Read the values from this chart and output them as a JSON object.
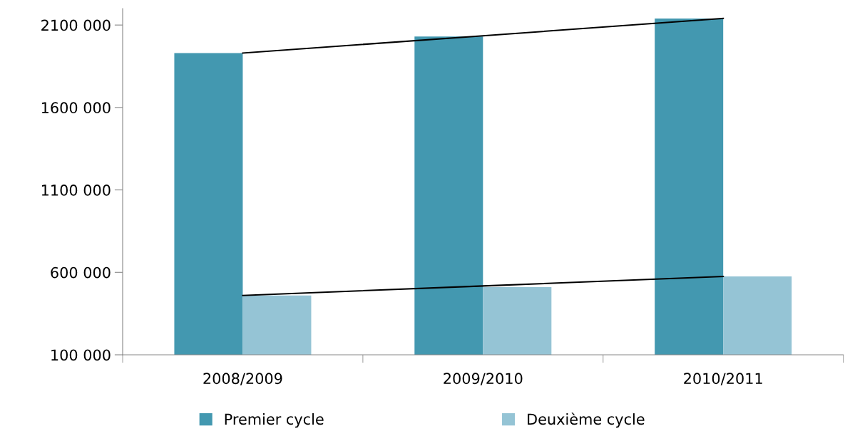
{
  "chart_data": {
    "type": "bar",
    "categories": [
      "2008/2009",
      "2009/2010",
      "2010/2011"
    ],
    "series": [
      {
        "name": "Premier cycle",
        "color": "#4398b0",
        "values": [
          1930000,
          2030000,
          2140000
        ]
      },
      {
        "name": "Deuxième cycle",
        "color": "#95c4d5",
        "values": [
          460000,
          510000,
          575000
        ]
      },
      {
        "type": "line",
        "color": "#000000",
        "values": [
          1930000,
          2035000,
          2140000
        ]
      },
      {
        "type": "line",
        "color": "#000000",
        "values": [
          460000,
          517500,
          575000
        ]
      }
    ],
    "ylim": [
      100000,
      2200000
    ],
    "yticks": [
      {
        "value": 100000,
        "label": "100 000"
      },
      {
        "value": 600000,
        "label": "600 000"
      },
      {
        "value": 1100000,
        "label": "1100 000"
      },
      {
        "value": 1600000,
        "label": "1600 000"
      },
      {
        "value": 2100000,
        "label": "2100 000"
      }
    ],
    "grid": false,
    "legend": "bottom"
  }
}
